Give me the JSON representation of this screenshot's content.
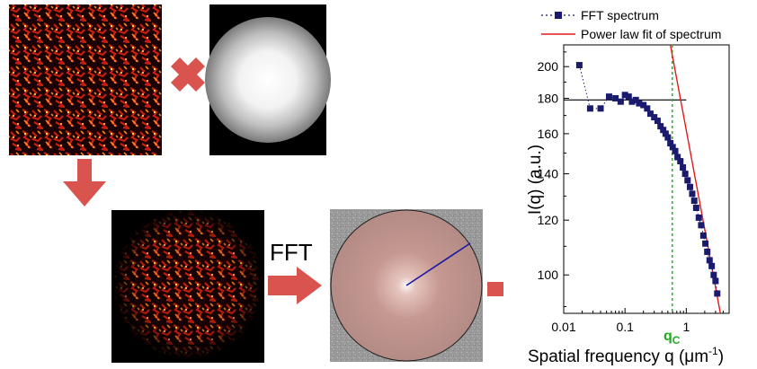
{
  "fft_label": "FFT",
  "arrow_color": "#d9534f",
  "chart_data": {
    "type": "scatter",
    "title": "",
    "xlabel": "Spatial frequency q (μm",
    "xlabel_sup": "-1",
    "xlabel_close": ")",
    "ylabel": "I(q) (a.u.)",
    "x_scale": "log",
    "y_scale": "log",
    "xlim": [
      0.01,
      5
    ],
    "ylim": [
      88,
      215
    ],
    "x_ticks": [
      {
        "value": 0.01,
        "label": "0.01"
      },
      {
        "value": 0.1,
        "label": "0.1"
      },
      {
        "value": 1,
        "label": "1"
      }
    ],
    "y_ticks": [
      {
        "value": 100,
        "label": "100"
      },
      {
        "value": 120,
        "label": "120"
      },
      {
        "value": 140,
        "label": "140"
      },
      {
        "value": 160,
        "label": "160"
      },
      {
        "value": 180,
        "label": "180"
      },
      {
        "value": 200,
        "label": "200"
      }
    ],
    "legend_position": "top",
    "series": [
      {
        "name": "FFT spectrum",
        "style": "markers+dotted",
        "color": "#1a1a6e",
        "x": [
          0.018,
          0.027,
          0.04,
          0.055,
          0.07,
          0.085,
          0.1,
          0.115,
          0.13,
          0.15,
          0.17,
          0.2,
          0.23,
          0.26,
          0.3,
          0.34,
          0.38,
          0.42,
          0.46,
          0.5,
          0.55,
          0.6,
          0.66,
          0.72,
          0.8,
          0.88,
          0.96,
          1.05,
          1.15,
          1.25,
          1.35,
          1.45,
          1.6,
          1.75,
          1.9,
          2.05,
          2.2,
          2.4,
          2.6,
          2.8,
          3.0,
          3.2
        ],
        "y": [
          201,
          174,
          174,
          181,
          180,
          178,
          182,
          181,
          178,
          179,
          177,
          176,
          174,
          171,
          169,
          167,
          164,
          162,
          160,
          158,
          155,
          153,
          151,
          148,
          146,
          143,
          140,
          137,
          134,
          131,
          128,
          125,
          121,
          118,
          114,
          111,
          108,
          105,
          103,
          100,
          98,
          94
        ]
      },
      {
        "name": "Power law fit of spectrum",
        "style": "line",
        "color": "#e41a1c",
        "x": [
          0.55,
          3.6
        ],
        "y": [
          215,
          88
        ]
      }
    ],
    "annotations": {
      "plateau_line": {
        "x": [
          0.01,
          1.0
        ],
        "y": 179,
        "color": "#000000"
      },
      "qc_line": {
        "x": 0.59,
        "color": "#22bb22"
      },
      "qc_label": "q",
      "qc_sub": "C"
    }
  }
}
